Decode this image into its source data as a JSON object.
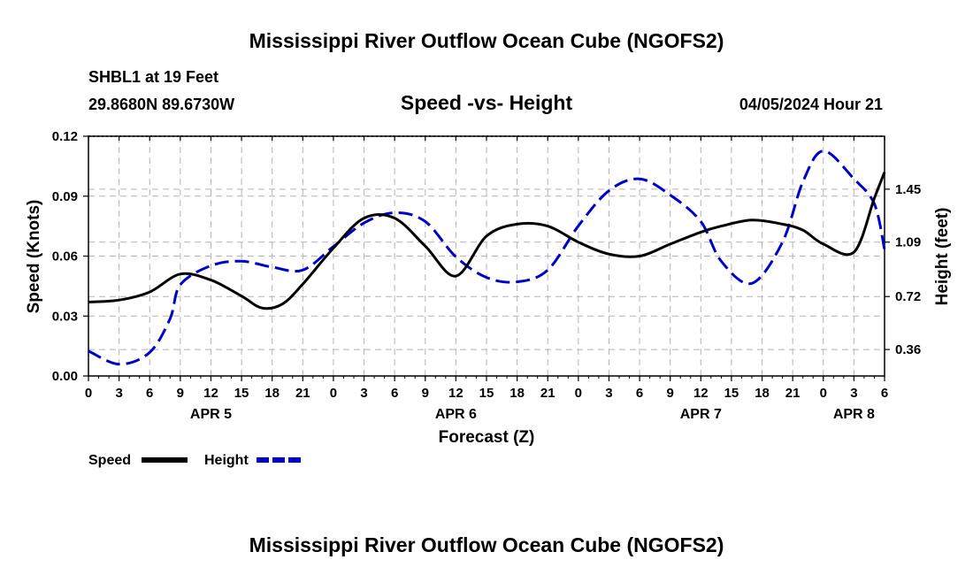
{
  "chart_data": {
    "type": "line",
    "title": "Mississippi River Outflow Ocean Cube (NGOFS2)",
    "footer_title": "Mississippi River Outflow Ocean Cube (NGOFS2)",
    "station": "SHBL1 at 19 Feet",
    "location": "29.8680N  89.6730W",
    "subtitle": "Speed -vs- Height",
    "datetime": "04/05/2024 Hour 21",
    "xlabel": "Forecast (Z)",
    "ylabel_left": "Speed (Knots)",
    "ylabel_right": "Height (feet)",
    "x_range_hours": [
      0,
      78
    ],
    "x_tick_labels": [
      "0",
      "3",
      "6",
      "9",
      "12",
      "15",
      "18",
      "21",
      "0",
      "3",
      "6",
      "9",
      "12",
      "15",
      "18",
      "21",
      "0",
      "3",
      "6",
      "9",
      "12",
      "15",
      "18",
      "21",
      "0",
      "3",
      "6"
    ],
    "date_labels": [
      {
        "label": "APR 5",
        "hour": 12
      },
      {
        "label": "APR 6",
        "hour": 36
      },
      {
        "label": "APR 7",
        "hour": 60
      },
      {
        "label": "APR 8",
        "hour": 75
      }
    ],
    "y_left": {
      "min": 0.0,
      "max": 0.12,
      "ticks": [
        "0.00",
        "0.03",
        "0.06",
        "0.09",
        "0.12"
      ],
      "tick_values": [
        0,
        0.03,
        0.06,
        0.09,
        0.12
      ]
    },
    "y_right": {
      "min": 0.18,
      "max": 1.81,
      "ticks": [
        "0.36",
        "0.72",
        "1.09",
        "1.45"
      ],
      "tick_values": [
        0.36,
        0.72,
        1.09,
        1.45
      ]
    },
    "grid": true,
    "legend": {
      "position": "bottom-left",
      "entries": [
        {
          "label": "Speed",
          "color": "#000000",
          "style": "solid"
        },
        {
          "label": "Height",
          "color": "#0000cc",
          "style": "dashed"
        }
      ]
    },
    "series": [
      {
        "name": "Speed",
        "axis": "left",
        "color": "#000000",
        "style": "solid",
        "x": [
          0,
          3,
          6,
          9,
          12,
          15,
          17,
          19,
          21,
          24,
          27,
          30,
          33,
          36,
          39,
          42,
          45,
          48,
          51,
          54,
          57,
          60,
          62,
          65,
          68,
          70,
          72,
          75,
          77,
          78
        ],
        "y": [
          0.037,
          0.038,
          0.042,
          0.051,
          0.048,
          0.04,
          0.034,
          0.036,
          0.046,
          0.064,
          0.079,
          0.079,
          0.065,
          0.05,
          0.07,
          0.076,
          0.075,
          0.067,
          0.061,
          0.06,
          0.066,
          0.072,
          0.075,
          0.078,
          0.076,
          0.073,
          0.066,
          0.062,
          0.089,
          0.102
        ]
      },
      {
        "name": "Height",
        "axis": "right",
        "color": "#0000cc",
        "style": "dashed",
        "x": [
          0,
          3,
          6,
          8,
          9,
          12,
          15,
          18,
          21,
          24,
          27,
          30,
          33,
          36,
          39,
          42,
          45,
          48,
          51,
          54,
          57,
          60,
          62,
          65,
          68,
          70,
          72,
          75,
          77,
          78
        ],
        "y": [
          0.35,
          0.26,
          0.34,
          0.57,
          0.8,
          0.93,
          0.96,
          0.92,
          0.9,
          1.06,
          1.22,
          1.29,
          1.23,
          0.99,
          0.85,
          0.82,
          0.9,
          1.2,
          1.44,
          1.52,
          1.41,
          1.23,
          0.96,
          0.81,
          1.09,
          1.5,
          1.71,
          1.52,
          1.35,
          1.04
        ]
      }
    ]
  }
}
